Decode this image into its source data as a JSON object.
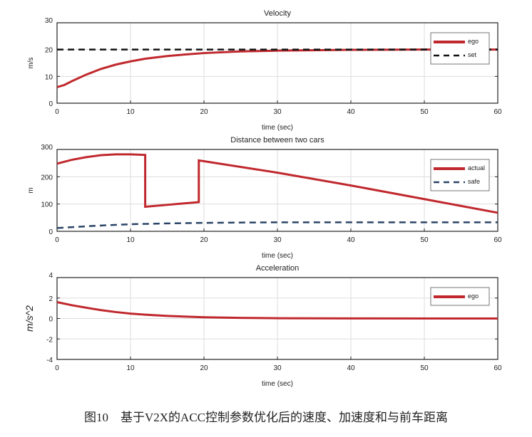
{
  "caption": "图10　基于V2X的ACC控制参数优化后的速度、加速度和与前车距离",
  "chart_data": [
    {
      "type": "line",
      "title": "Velocity",
      "xlabel": "time (sec)",
      "ylabel": "m/s",
      "xlim": [
        0,
        60
      ],
      "ylim": [
        0,
        30
      ],
      "xticks": [
        "0",
        "10",
        "20",
        "30",
        "40",
        "50",
        "60"
      ],
      "yticks": [
        "0",
        "10",
        "20",
        "30"
      ],
      "grid": true,
      "legend": "top-right",
      "series": [
        {
          "name": "ego",
          "color": "#c0282d",
          "dash": false,
          "x": [
            0,
            1,
            2,
            4,
            6,
            8,
            10,
            12,
            15,
            18,
            20,
            25,
            30,
            40,
            50,
            60
          ],
          "y": [
            6,
            6.8,
            8.2,
            10.7,
            12.8,
            14.4,
            15.6,
            16.6,
            17.6,
            18.3,
            18.7,
            19.3,
            19.6,
            19.9,
            20,
            20
          ]
        },
        {
          "name": "set",
          "color": "#111111",
          "dash": true,
          "x": [
            0,
            60
          ],
          "y": [
            20,
            20
          ]
        }
      ]
    },
    {
      "type": "line",
      "title": "Distance between two cars",
      "xlabel": "time (sec)",
      "ylabel": "m",
      "xlim": [
        0,
        60
      ],
      "ylim": [
        0,
        300
      ],
      "xticks": [
        "0",
        "10",
        "20",
        "30",
        "40",
        "50",
        "60"
      ],
      "yticks": [
        "0",
        "100",
        "200",
        "300"
      ],
      "grid": true,
      "legend": "top-right",
      "series": [
        {
          "name": "actual",
          "color": "#c0282d",
          "dash": false,
          "x": [
            0,
            2,
            4,
            6,
            8,
            10,
            12,
            12,
            15,
            19.3,
            19.3,
            30,
            40,
            50,
            60
          ],
          "y": [
            248,
            262,
            272,
            279,
            282,
            282,
            280,
            90,
            97,
            107,
            260,
            215,
            168,
            118,
            68
          ]
        },
        {
          "name": "safe",
          "color": "#2a4466",
          "dash": true,
          "x": [
            0,
            5,
            10,
            15,
            20,
            30,
            40,
            60
          ],
          "y": [
            12,
            20,
            26,
            29,
            31,
            33,
            33,
            33
          ]
        }
      ]
    },
    {
      "type": "line",
      "title": "Acceleration",
      "xlabel": "time (sec)",
      "ylabel": "m/s^2",
      "xlim": [
        0,
        60
      ],
      "ylim": [
        -4,
        4
      ],
      "xticks": [
        "0",
        "10",
        "20",
        "30",
        "40",
        "50",
        "60"
      ],
      "yticks": [
        "-4",
        "-2",
        "0",
        "2",
        "4"
      ],
      "grid": true,
      "legend": "top-right",
      "series": [
        {
          "name": "ego",
          "color": "#c0282d",
          "dash": false,
          "x": [
            0,
            2,
            4,
            6,
            8,
            10,
            12,
            15,
            20,
            25,
            30,
            40,
            60
          ],
          "y": [
            1.6,
            1.3,
            1.05,
            0.82,
            0.63,
            0.48,
            0.37,
            0.25,
            0.12,
            0.06,
            0.03,
            0.01,
            0
          ]
        }
      ]
    }
  ]
}
